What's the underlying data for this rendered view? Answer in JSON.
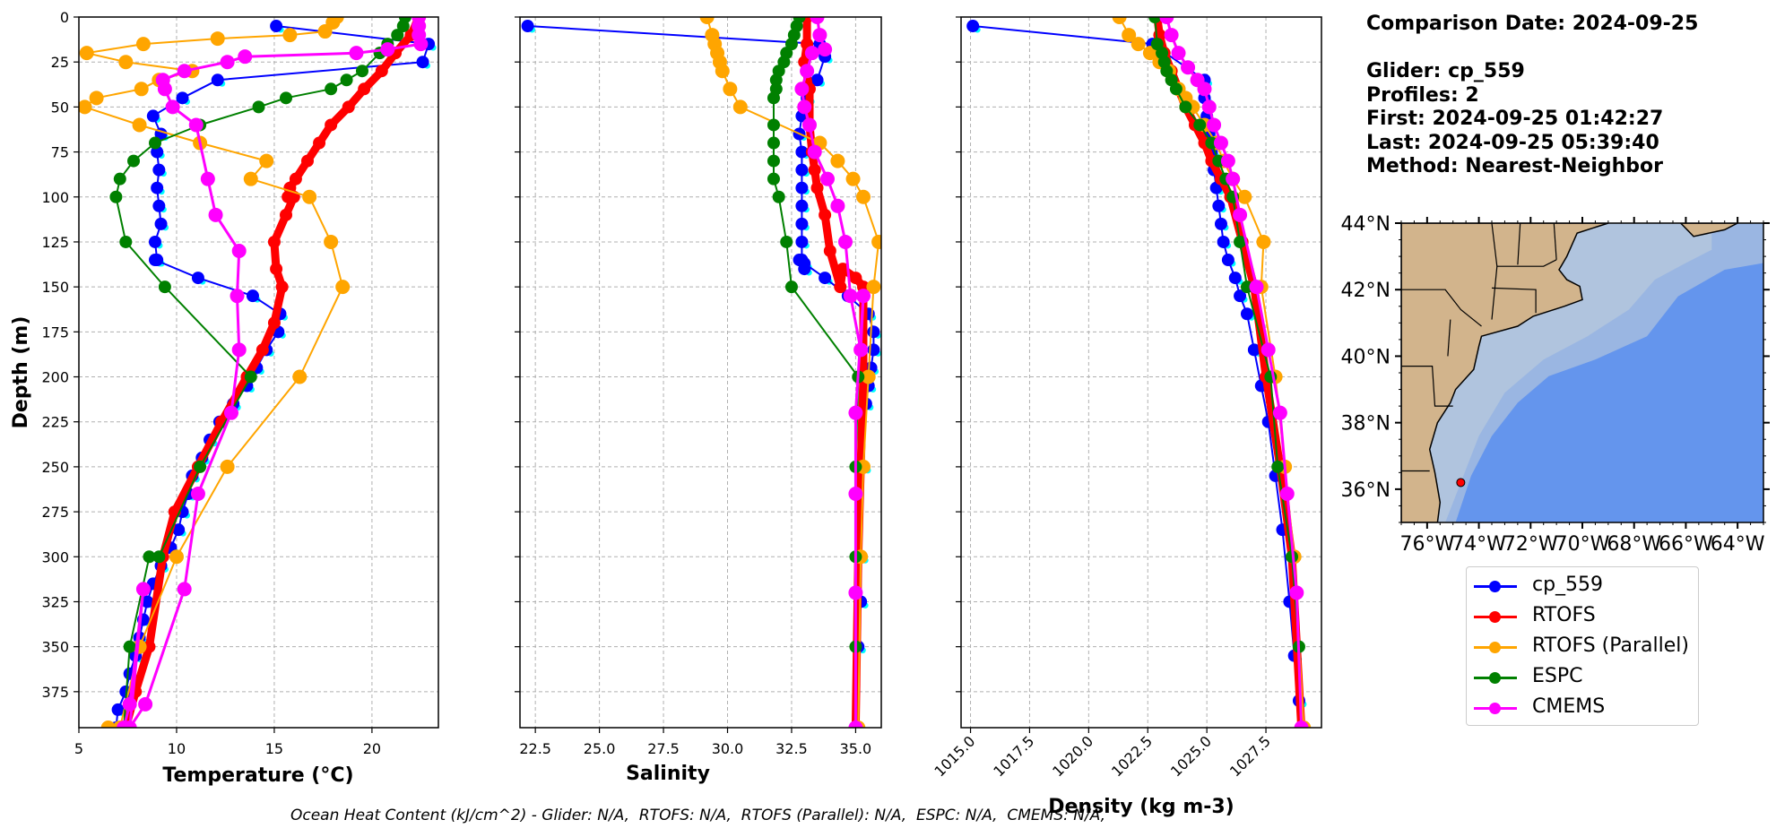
{
  "info": {
    "comparison_date": "Comparison Date: 2024-09-25",
    "glider": "Glider: cp_559",
    "profiles": "Profiles: 2",
    "first": "First: 2024-09-25 01:42:27",
    "last": "Last: 2024-09-25 05:39:40",
    "method": "Method: Nearest-Neighbor"
  },
  "footer": "Ocean Heat Content (kJ/cm^2) - Glider: N/A,  RTOFS: N/A,  RTOFS (Parallel): N/A,  ESPC: N/A,  CMEMS: N/A,",
  "legend": [
    {
      "label": "cp_559",
      "color": "#0000ff"
    },
    {
      "label": "RTOFS",
      "color": "#ff0000"
    },
    {
      "label": "RTOFS (Parallel)",
      "color": "#ffa500"
    },
    {
      "label": "ESPC",
      "color": "#008000"
    },
    {
      "label": "CMEMS",
      "color": "#ff00ff"
    }
  ],
  "map": {
    "lat_ticks": [
      "44°N",
      "42°N",
      "40°N",
      "38°N",
      "36°N"
    ],
    "lat_values": [
      44,
      42,
      40,
      38,
      36
    ],
    "lon_ticks": [
      "76°W",
      "74°W",
      "72°W",
      "70°W",
      "68°W",
      "66°W",
      "64°W"
    ],
    "lon_values": [
      -76,
      -74,
      -72,
      -70,
      -68,
      -66,
      -64
    ],
    "extent": {
      "lon": [
        -77,
        -63
      ],
      "lat": [
        35,
        44
      ]
    },
    "glider_position": {
      "lon": -74.7,
      "lat": 36.2
    },
    "colors": {
      "land": "#d2b48c",
      "shelf": "#b0c4de",
      "slope": "#9ab6e2",
      "deep": "#6495ed",
      "marker": "#ff0000"
    }
  },
  "chart_data": [
    {
      "type": "line",
      "title": "",
      "xlabel": "Temperature (°C)",
      "ylabel": "Depth (m)",
      "xlim": [
        5,
        23.4
      ],
      "ylim": [
        395,
        0
      ],
      "xticks": [
        5,
        10,
        15,
        20
      ],
      "xtick_labels": [
        "5",
        "10",
        "15",
        "20"
      ],
      "yticks": [
        0,
        25,
        50,
        75,
        100,
        125,
        150,
        175,
        200,
        225,
        250,
        275,
        300,
        325,
        350,
        375
      ],
      "ytick_labels": [
        "0",
        "25",
        "50",
        "75",
        "100",
        "125",
        "150",
        "175",
        "200",
        "225",
        "250",
        "275",
        "300",
        "325",
        "350",
        "375"
      ],
      "grid": true,
      "series": [
        {
          "name": "cp_559",
          "color": "#0000ff",
          "lw": 2,
          "ms": 7,
          "x": [
            15.1,
            22.9,
            22.6,
            12.1,
            10.3,
            8.8,
            9.2,
            9.0,
            9.1,
            9.0,
            9.1,
            9.2,
            8.9,
            9.0,
            8.9,
            11.1,
            13.9,
            15.3,
            15.2,
            14.6,
            14.1,
            13.6,
            12.9,
            12.2,
            11.7,
            11.3,
            10.8,
            10.6,
            10.3,
            10.1,
            9.7,
            9.2,
            8.8,
            8.5,
            8.3,
            8.1,
            7.9,
            7.6,
            7.4,
            7.0,
            6.9
          ],
          "y": [
            5,
            15,
            25,
            35,
            45,
            55,
            65,
            75,
            85,
            95,
            105,
            115,
            125,
            135,
            135,
            145,
            155,
            165,
            175,
            185,
            195,
            205,
            215,
            225,
            235,
            245,
            255,
            265,
            275,
            285,
            295,
            305,
            315,
            325,
            335,
            345,
            355,
            365,
            375,
            385,
            395
          ]
        },
        {
          "name": "RTOFS",
          "color": "#ff0000",
          "lw": 9,
          "ms": 7,
          "x": [
            22.4,
            22.0,
            21.2,
            20.5,
            19.6,
            18.8,
            17.9,
            17.3,
            16.7,
            16.1,
            15.8,
            15.7,
            16.0,
            15.6,
            15.0,
            15.1,
            15.4,
            15.0,
            14.4,
            13.6,
            12.3,
            11.1,
            9.9,
            9.3,
            8.6,
            7.9,
            7.4
          ],
          "y": [
            0,
            10,
            20,
            30,
            40,
            50,
            60,
            70,
            80,
            90,
            95,
            100,
            100,
            110,
            125,
            140,
            150,
            170,
            185,
            200,
            225,
            250,
            275,
            300,
            350,
            375,
            395
          ]
        },
        {
          "name": "RTOFS (Parallel)",
          "color": "#ffa500",
          "lw": 2,
          "ms": 8,
          "x": [
            18.2,
            18.0,
            17.6,
            15.8,
            12.1,
            8.3,
            5.4,
            7.4,
            10.8,
            9.1,
            8.2,
            5.9,
            5.3,
            8.1,
            11.2,
            14.6,
            13.8,
            16.8,
            17.9,
            18.5,
            16.3,
            12.6,
            10.0,
            8.1,
            7.1,
            6.5
          ],
          "y": [
            0,
            3,
            8,
            10,
            12,
            15,
            20,
            25,
            30,
            35,
            40,
            45,
            50,
            60,
            70,
            80,
            90,
            100,
            125,
            150,
            200,
            250,
            300,
            350,
            395,
            395
          ]
        },
        {
          "name": "ESPC",
          "color": "#008000",
          "lw": 2,
          "ms": 7,
          "x": [
            21.7,
            21.6,
            21.3,
            20.8,
            20.4,
            19.5,
            18.7,
            17.9,
            15.6,
            14.2,
            11.2,
            8.9,
            7.8,
            7.1,
            6.9,
            7.4,
            9.4,
            13.8,
            11.2,
            9.1,
            8.6,
            7.6,
            7.3
          ],
          "y": [
            0,
            5,
            10,
            15,
            20,
            30,
            35,
            40,
            45,
            50,
            60,
            70,
            80,
            90,
            100,
            125,
            150,
            200,
            250,
            300,
            300,
            350,
            395
          ]
        },
        {
          "name": "CMEMS",
          "color": "#ff00ff",
          "lw": 3,
          "ms": 8,
          "x": [
            22.4,
            22.4,
            22.4,
            22.5,
            20.8,
            19.2,
            13.5,
            12.6,
            10.4,
            9.3,
            9.4,
            9.8,
            11.0,
            11.6,
            12.0,
            13.2,
            13.1,
            13.2,
            12.8,
            11.1,
            10.4,
            8.4,
            7.6,
            8.3,
            7.6,
            7.3
          ],
          "y": [
            0,
            5,
            10,
            15,
            18,
            20,
            22,
            25,
            30,
            35,
            40,
            50,
            60,
            90,
            110,
            130,
            155,
            185,
            220,
            265,
            318,
            382,
            395,
            318,
            382,
            395
          ]
        }
      ]
    },
    {
      "type": "line",
      "title": "",
      "xlabel": "Salinity",
      "ylabel": "",
      "xlim": [
        21.9,
        36.0
      ],
      "ylim": [
        395,
        0
      ],
      "xticks": [
        22.5,
        25.0,
        27.5,
        30.0,
        32.5,
        35.0
      ],
      "xtick_labels": [
        "22.5",
        "25.0",
        "27.5",
        "30.0",
        "32.5",
        "35.0"
      ],
      "yticks": [
        0,
        25,
        50,
        75,
        100,
        125,
        150,
        175,
        200,
        225,
        250,
        275,
        300,
        325,
        350,
        375
      ],
      "grid": true,
      "series": [
        {
          "name": "cp_559",
          "color": "#0000ff",
          "lw": 2,
          "ms": 7,
          "x": [
            22.2,
            33.6,
            33.8,
            33.5,
            33.1,
            32.9,
            32.8,
            32.9,
            32.9,
            32.9,
            32.9,
            32.9,
            32.9,
            32.9,
            33.0,
            33.0,
            32.8,
            33.8,
            34.7,
            35.5,
            35.7,
            35.7,
            35.6,
            35.5,
            35.4,
            35.3,
            35.2,
            35.2,
            35.1,
            35.1
          ],
          "y": [
            5,
            15,
            22,
            35,
            45,
            55,
            65,
            75,
            85,
            95,
            105,
            115,
            125,
            135,
            137,
            140,
            135,
            145,
            155,
            165,
            175,
            185,
            195,
            205,
            215,
            250,
            300,
            325,
            350,
            395
          ]
        },
        {
          "name": "RTOFS",
          "color": "#ff0000",
          "lw": 9,
          "ms": 7,
          "x": [
            33.1,
            33.1,
            33.0,
            33.2,
            33.2,
            33.3,
            33.4,
            33.5,
            33.8,
            34.0,
            34.4,
            34.5,
            35.0,
            35.3,
            35.3,
            35.2,
            35.1,
            35.0
          ],
          "y": [
            0,
            15,
            25,
            40,
            60,
            75,
            85,
            95,
            110,
            130,
            150,
            140,
            145,
            150,
            200,
            250,
            300,
            395
          ]
        },
        {
          "name": "RTOFS (Parallel)",
          "color": "#ffa500",
          "lw": 2,
          "ms": 8,
          "x": [
            29.2,
            29.4,
            29.5,
            29.6,
            29.7,
            29.8,
            30.1,
            30.5,
            33.6,
            34.3,
            34.9,
            35.3,
            35.9,
            35.7,
            35.5,
            35.3,
            35.2,
            35.1
          ],
          "y": [
            0,
            10,
            15,
            20,
            25,
            30,
            40,
            50,
            70,
            80,
            90,
            100,
            125,
            150,
            200,
            250,
            300,
            395
          ]
        },
        {
          "name": "ESPC",
          "color": "#008000",
          "lw": 2,
          "ms": 7,
          "x": [
            32.8,
            32.7,
            32.6,
            32.5,
            32.3,
            32.2,
            32.0,
            31.9,
            31.9,
            31.8,
            31.8,
            31.8,
            31.8,
            31.8,
            32.0,
            32.3,
            32.5,
            35.1,
            35.0,
            35.0,
            35.0,
            35.0
          ],
          "y": [
            0,
            5,
            10,
            15,
            20,
            25,
            30,
            35,
            40,
            45,
            60,
            70,
            80,
            90,
            100,
            125,
            150,
            200,
            250,
            300,
            350,
            395
          ]
        },
        {
          "name": "CMEMS",
          "color": "#ff00ff",
          "lw": 3,
          "ms": 8,
          "x": [
            33.5,
            33.6,
            33.8,
            33.3,
            33.1,
            32.9,
            33.0,
            33.2,
            33.4,
            33.9,
            34.3,
            34.6,
            34.8,
            35.2,
            35.3,
            35.0,
            35.0,
            35.0,
            35.0
          ],
          "y": [
            0,
            10,
            18,
            20,
            30,
            40,
            50,
            60,
            75,
            90,
            105,
            125,
            155,
            185,
            155,
            220,
            265,
            320,
            395
          ]
        }
      ]
    },
    {
      "type": "line",
      "title": "",
      "xlabel": "Density (kg m-3)",
      "ylabel": "",
      "xlim": [
        1014.6,
        1029.85
      ],
      "ylim": [
        395,
        0
      ],
      "xticks": [
        1015.0,
        1017.5,
        1020.0,
        1022.5,
        1025.0,
        1027.5
      ],
      "xtick_labels": [
        "1015.0",
        "1017.5",
        "1020.0",
        "1022.5",
        "1025.0",
        "1027.5"
      ],
      "yticks": [
        0,
        25,
        50,
        75,
        100,
        125,
        150,
        175,
        200,
        225,
        250,
        275,
        300,
        325,
        350,
        375
      ],
      "grid": true,
      "series": [
        {
          "name": "cp_559",
          "color": "#0000ff",
          "lw": 2,
          "ms": 7,
          "x": [
            1015.1,
            1022.7,
            1024.9,
            1024.9,
            1025.0,
            1025.1,
            1025.2,
            1025.3,
            1025.4,
            1025.5,
            1025.6,
            1025.7,
            1025.9,
            1026.2,
            1026.4,
            1026.7,
            1027.0,
            1027.3,
            1027.6,
            1027.9,
            1028.2,
            1028.5,
            1028.7,
            1028.9,
            1029.0
          ],
          "y": [
            5,
            15,
            35,
            45,
            55,
            65,
            75,
            85,
            95,
            105,
            115,
            125,
            135,
            145,
            155,
            165,
            185,
            205,
            225,
            255,
            285,
            325,
            355,
            380,
            395
          ]
        },
        {
          "name": "RTOFS",
          "color": "#ff0000",
          "lw": 9,
          "ms": 7,
          "x": [
            1022.9,
            1023.0,
            1023.2,
            1023.5,
            1023.8,
            1024.1,
            1024.5,
            1024.9,
            1025.2,
            1025.6,
            1026.0,
            1026.5,
            1027.0,
            1027.5,
            1028.1,
            1028.6,
            1029.0
          ],
          "y": [
            0,
            10,
            20,
            30,
            40,
            50,
            60,
            70,
            80,
            90,
            100,
            125,
            150,
            200,
            250,
            300,
            395
          ]
        },
        {
          "name": "RTOFS (Parallel)",
          "color": "#ffa500",
          "lw": 2,
          "ms": 8,
          "x": [
            1021.3,
            1021.7,
            1022.1,
            1022.6,
            1023.0,
            1023.4,
            1023.8,
            1024.1,
            1024.4,
            1024.9,
            1025.4,
            1025.7,
            1026.1,
            1026.6,
            1027.4,
            1027.3,
            1027.9,
            1028.3,
            1028.7,
            1029.1
          ],
          "y": [
            0,
            10,
            15,
            20,
            25,
            30,
            40,
            45,
            50,
            60,
            70,
            80,
            90,
            100,
            125,
            150,
            200,
            250,
            300,
            395
          ]
        },
        {
          "name": "ESPC",
          "color": "#008000",
          "lw": 2,
          "ms": 7,
          "x": [
            1022.8,
            1022.9,
            1023.1,
            1023.2,
            1023.3,
            1023.5,
            1023.7,
            1024.1,
            1024.7,
            1025.2,
            1025.5,
            1025.8,
            1026.1,
            1026.4,
            1026.7,
            1027.7,
            1028.0,
            1028.6,
            1028.9,
            1029.0
          ],
          "y": [
            0,
            15,
            20,
            25,
            30,
            35,
            40,
            50,
            60,
            70,
            80,
            90,
            100,
            125,
            150,
            200,
            250,
            300,
            350,
            395
          ]
        },
        {
          "name": "CMEMS",
          "color": "#ff00ff",
          "lw": 3,
          "ms": 8,
          "x": [
            1023.3,
            1023.5,
            1023.8,
            1024.2,
            1024.6,
            1024.9,
            1025.1,
            1025.3,
            1025.6,
            1025.9,
            1026.1,
            1026.4,
            1027.1,
            1027.6,
            1028.1,
            1028.4,
            1028.8,
            1029.0
          ],
          "y": [
            0,
            10,
            20,
            28,
            35,
            40,
            50,
            60,
            70,
            80,
            90,
            110,
            150,
            185,
            220,
            265,
            320,
            395
          ]
        }
      ]
    }
  ]
}
